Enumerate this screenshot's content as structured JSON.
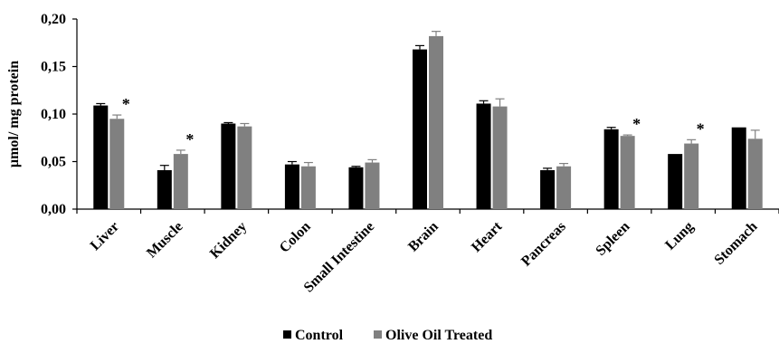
{
  "chart_data": {
    "type": "bar",
    "ylabel": "µmol/ mg protein",
    "xlabel": "",
    "ylim": [
      0,
      0.2
    ],
    "yticks": [
      0,
      0.05,
      0.1,
      0.15,
      0.2
    ],
    "ytick_labels": [
      "0,00",
      "0,05",
      "0,10",
      "0,15",
      "0,20"
    ],
    "grid": false,
    "legend_position": "bottom",
    "significance_marker": "*",
    "categories": [
      "Liver",
      "Muscle",
      "Kidney",
      "Colon",
      "Small Intestine",
      "Brain",
      "Heart",
      "Pancreas",
      "Spleen",
      "Lung",
      "Stomach"
    ],
    "series": [
      {
        "name": "Control",
        "color": "#000000",
        "values": [
          0.109,
          0.041,
          0.09,
          0.047,
          0.044,
          0.168,
          0.111,
          0.041,
          0.084,
          0.058,
          0.086
        ],
        "errors": [
          0.002,
          0.005,
          0.001,
          0.003,
          0.001,
          0.004,
          0.003,
          0.002,
          0.002,
          0.0,
          0.0
        ],
        "significant": [
          false,
          false,
          false,
          false,
          false,
          false,
          false,
          false,
          false,
          false,
          false
        ]
      },
      {
        "name": "Olive Oil Treated",
        "color": "#808080",
        "values": [
          0.095,
          0.058,
          0.087,
          0.045,
          0.049,
          0.182,
          0.108,
          0.045,
          0.077,
          0.069,
          0.074
        ],
        "errors": [
          0.004,
          0.004,
          0.003,
          0.004,
          0.003,
          0.005,
          0.008,
          0.003,
          0.001,
          0.004,
          0.009
        ],
        "significant": [
          true,
          true,
          false,
          false,
          false,
          false,
          false,
          false,
          true,
          true,
          false
        ]
      }
    ]
  }
}
